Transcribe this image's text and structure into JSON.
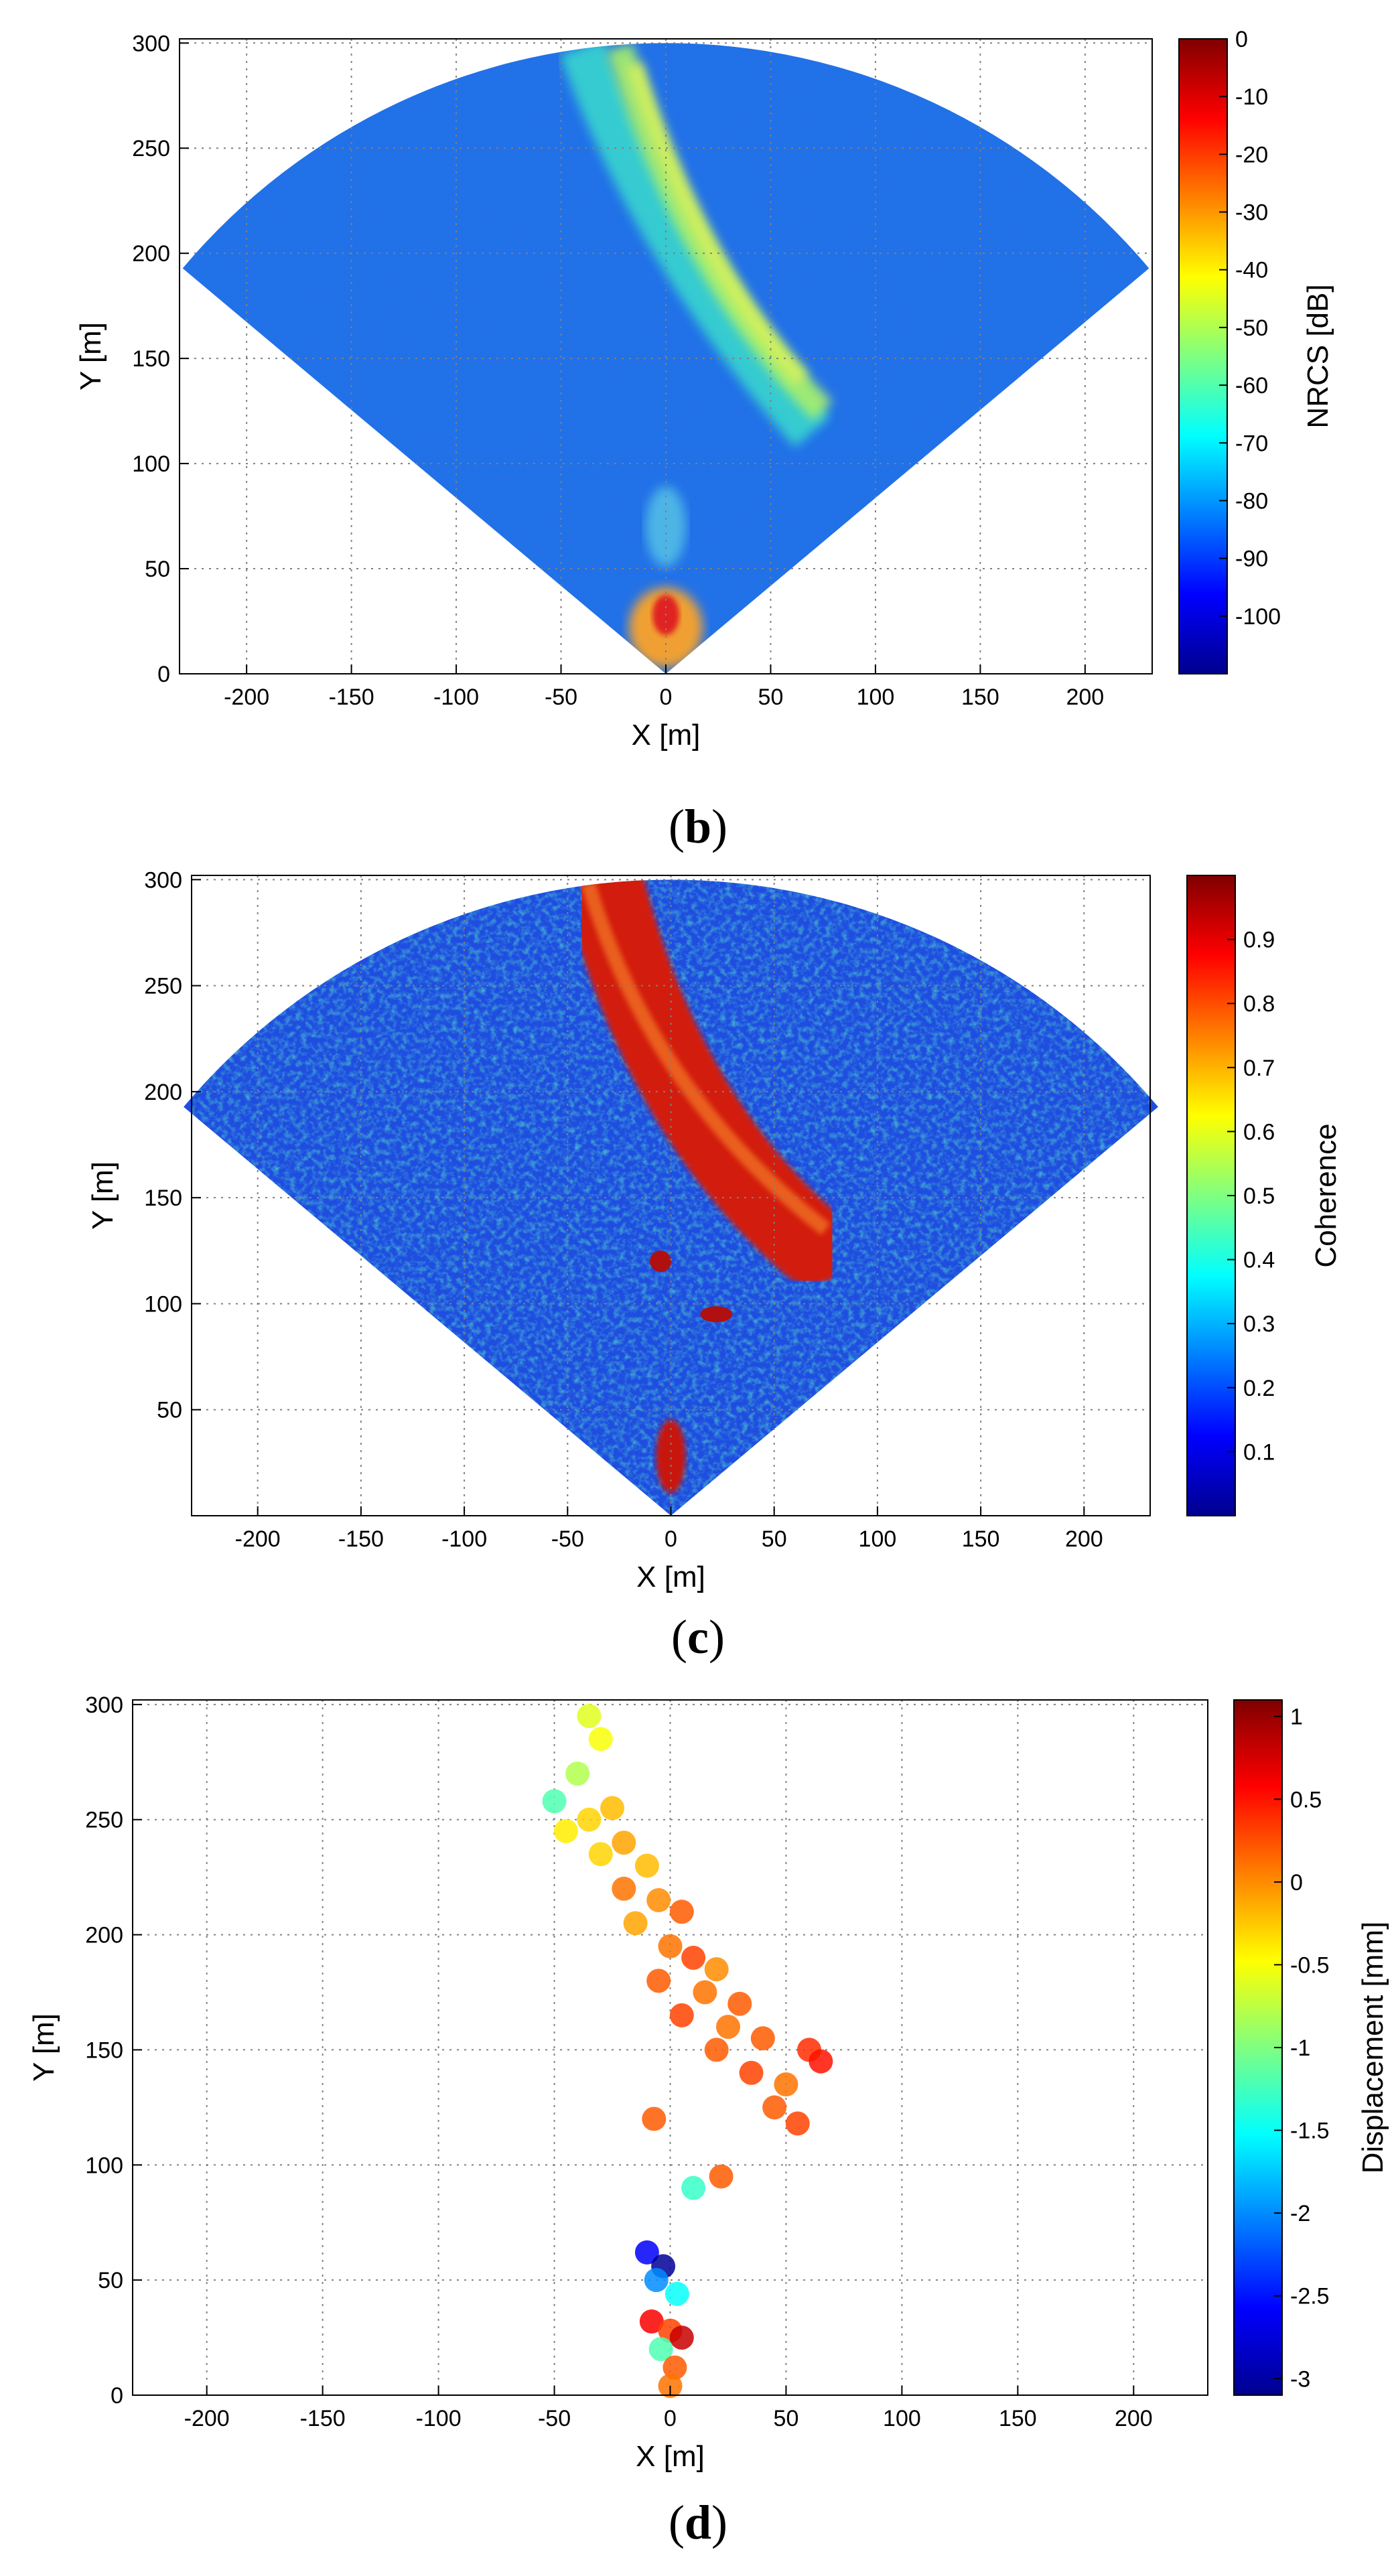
{
  "chart_data": [
    {
      "type": "heatmap",
      "caption_letter": "b",
      "xlabel": "X [m]",
      "ylabel": "Y [m]",
      "xlim": [
        -232,
        232
      ],
      "ylim": [
        0,
        302
      ],
      "xticks": [
        -200,
        -150,
        -100,
        -50,
        0,
        50,
        100,
        150,
        200
      ],
      "yticks": [
        0,
        50,
        100,
        150,
        200,
        250,
        300
      ],
      "grid": true,
      "colorbar": {
        "label": "NRCS [dB]",
        "range": [
          -110,
          0
        ],
        "ticks": [
          0,
          -10,
          -20,
          -30,
          -40,
          -50,
          -60,
          -70,
          -80,
          -90,
          -100
        ]
      },
      "description_fields": {
        "sector_half_angle_deg": 50,
        "max_range_m": 302
      }
    },
    {
      "type": "heatmap",
      "caption_letter": "c",
      "xlabel": "X [m]",
      "ylabel": "Y [m]",
      "xlim": [
        -232,
        232
      ],
      "ylim": [
        0,
        302
      ],
      "xticks": [
        -200,
        -150,
        -100,
        -50,
        0,
        50,
        100,
        150,
        200
      ],
      "yticks": [
        50,
        100,
        150,
        200,
        250,
        300
      ],
      "grid": true,
      "colorbar": {
        "label": "Coherence",
        "range": [
          0,
          1
        ],
        "ticks": [
          0.9,
          0.8,
          0.7,
          0.6,
          0.5,
          0.4,
          0.3,
          0.2,
          0.1
        ]
      }
    },
    {
      "type": "scatter",
      "caption_letter": "d",
      "xlabel": "X [m]",
      "ylabel": "Y [m]",
      "xlim": [
        -232,
        232
      ],
      "ylim": [
        0,
        302
      ],
      "xticks": [
        -200,
        -150,
        -100,
        -50,
        0,
        50,
        100,
        150,
        200
      ],
      "yticks": [
        0,
        50,
        100,
        150,
        200,
        250,
        300
      ],
      "grid": true,
      "colorbar": {
        "label": "Displacement [mm]",
        "range": [
          -3.1,
          1.1
        ],
        "ticks": [
          1,
          0.5,
          0,
          -0.5,
          -1,
          -1.5,
          -2,
          -2.5,
          -3
        ]
      },
      "points": [
        [
          -35,
          295,
          -0.6
        ],
        [
          -30,
          285,
          -0.5
        ],
        [
          -40,
          270,
          -0.8
        ],
        [
          -50,
          258,
          -1.2
        ],
        [
          -45,
          245,
          -0.4
        ],
        [
          -35,
          250,
          -0.3
        ],
        [
          -25,
          255,
          -0.2
        ],
        [
          -30,
          235,
          -0.3
        ],
        [
          -20,
          240,
          -0.1
        ],
        [
          -10,
          230,
          -0.2
        ],
        [
          -20,
          220,
          0.1
        ],
        [
          -5,
          215,
          0.0
        ],
        [
          5,
          210,
          0.2
        ],
        [
          -15,
          205,
          -0.1
        ],
        [
          0,
          195,
          0.1
        ],
        [
          10,
          190,
          0.3
        ],
        [
          20,
          185,
          0.0
        ],
        [
          -5,
          180,
          0.2
        ],
        [
          15,
          175,
          0.1
        ],
        [
          30,
          170,
          0.2
        ],
        [
          5,
          165,
          0.3
        ],
        [
          25,
          160,
          0.1
        ],
        [
          40,
          155,
          0.2
        ],
        [
          60,
          150,
          0.4
        ],
        [
          20,
          150,
          0.2
        ],
        [
          35,
          140,
          0.3
        ],
        [
          50,
          135,
          0.1
        ],
        [
          45,
          125,
          0.2
        ],
        [
          55,
          118,
          0.3
        ],
        [
          65,
          145,
          0.5
        ],
        [
          -7,
          120,
          0.2
        ],
        [
          22,
          95,
          0.2
        ],
        [
          10,
          90,
          -1.3
        ],
        [
          -10,
          62,
          -2.6
        ],
        [
          -3,
          56,
          -3.0
        ],
        [
          -6,
          50,
          -2.0
        ],
        [
          3,
          44,
          -1.5
        ],
        [
          -8,
          32,
          0.6
        ],
        [
          0,
          28,
          0.3
        ],
        [
          5,
          25,
          0.8
        ],
        [
          -4,
          20,
          -1.2
        ],
        [
          2,
          12,
          0.2
        ],
        [
          0,
          4,
          0.1
        ]
      ]
    }
  ]
}
